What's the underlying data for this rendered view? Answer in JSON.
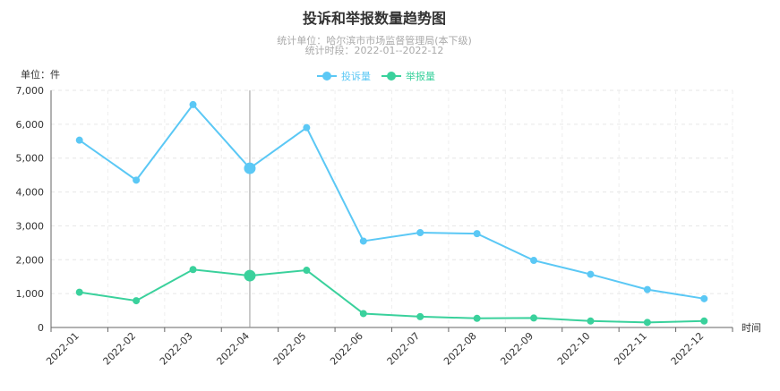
{
  "chart_data": {
    "type": "line",
    "title": "投诉和举报数量趋势图",
    "subtitle_lines": [
      "统计单位：哈尔滨市市场监督管理局(本下级)",
      "统计时段：2022-01--2022-12"
    ],
    "ylabel": "单位：件",
    "xlabel": "时间",
    "ylim": [
      0,
      7000
    ],
    "y_ticks": [
      "0",
      "1,000",
      "2,000",
      "3,000",
      "4,000",
      "5,000",
      "6,000",
      "7,000"
    ],
    "categories": [
      "2022-01",
      "2022-02",
      "2022-03",
      "2022-04",
      "2022-05",
      "2022-06",
      "2022-07",
      "2022-08",
      "2022-09",
      "2022-10",
      "2022-11",
      "2022-12"
    ],
    "series": [
      {
        "name": "投诉量",
        "color": "#5bc8f5",
        "values": [
          5530,
          4350,
          6580,
          4700,
          5900,
          2550,
          2800,
          2770,
          1980,
          1570,
          1120,
          850
        ]
      },
      {
        "name": "举报量",
        "color": "#3ad19c",
        "values": [
          1040,
          790,
          1710,
          1530,
          1690,
          410,
          320,
          270,
          280,
          190,
          150,
          190
        ]
      }
    ],
    "highlighted_category": "2022-04",
    "grid": true,
    "legend_position": "top-center"
  }
}
